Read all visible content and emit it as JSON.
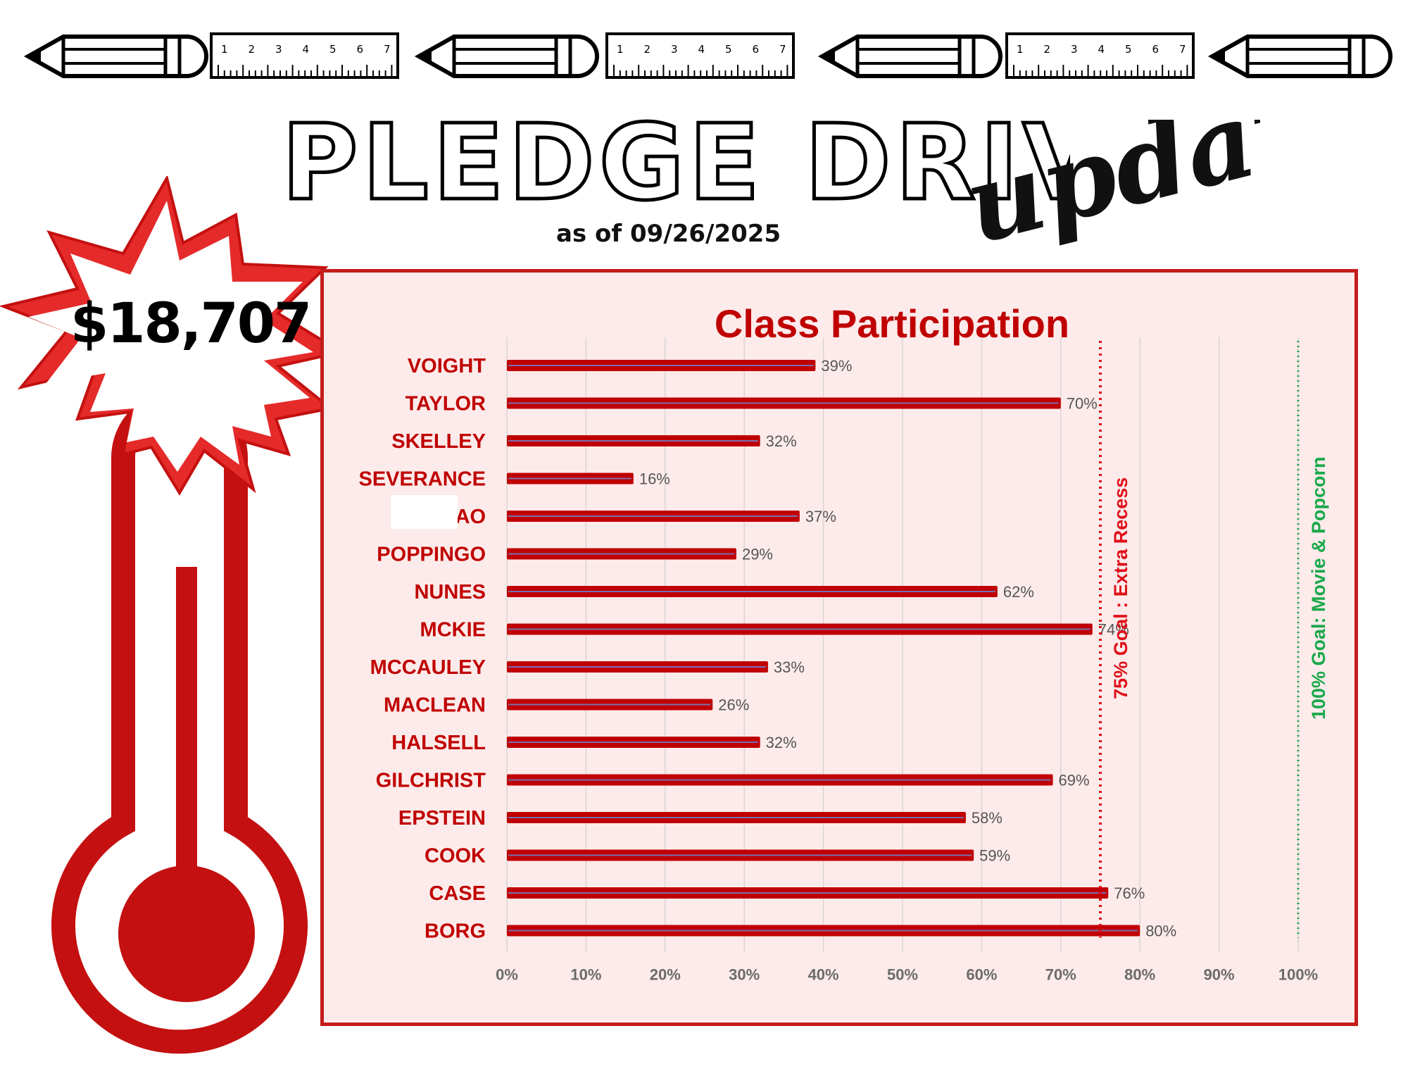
{
  "header": {
    "title": "PLEDGE DRIVE",
    "title_script": "update",
    "as_of": "as of 09/26/2025"
  },
  "thermometer": {
    "amount": "$18,707"
  },
  "decorations": {
    "items": [
      "pencil-icon",
      "ruler-icon",
      "pencil-icon",
      "ruler-icon",
      "pencil-icon",
      "ruler-icon",
      "pencil-icon"
    ],
    "ruler_numbers": [
      "1",
      "2",
      "3",
      "4",
      "5",
      "6",
      "7"
    ]
  },
  "colors": {
    "bar": "#c00000",
    "panel_bg": "#fcebea",
    "panel_border": "#c41c1c",
    "goal_75": "#e0101a",
    "goal_100": "#1aa84a"
  },
  "chart_data": {
    "type": "bar",
    "orientation": "horizontal",
    "title": "Class Participation",
    "categories": [
      "VOIGHT",
      "TAYLOR",
      "SKELLEY",
      "SEVERANCE",
      "AO",
      "POPPINGO",
      "NUNES",
      "MCKIE",
      "MCCAULEY",
      "MACLEAN",
      "HALSELL",
      "GILCHRIST",
      "EPSTEIN",
      "COOK",
      "CASE",
      "BORG"
    ],
    "values": [
      39,
      70,
      32,
      16,
      37,
      29,
      62,
      74,
      33,
      26,
      32,
      69,
      58,
      59,
      76,
      80
    ],
    "data_labels": [
      "39%",
      "70%",
      "32%",
      "16%",
      "37%",
      "29%",
      "62%",
      "74%",
      "33%",
      "26%",
      "32%",
      "69%",
      "58%",
      "59%",
      "76%",
      "80%"
    ],
    "x_ticks": [
      "0%",
      "10%",
      "20%",
      "30%",
      "40%",
      "50%",
      "60%",
      "70%",
      "80%",
      "90%",
      "100%"
    ],
    "xlim": [
      0,
      100
    ],
    "grid": true,
    "reference_lines": [
      {
        "value": 75,
        "label": "75%  Goal : Extra Recess",
        "color": "#e0101a"
      },
      {
        "value": 100,
        "label": "100% Goal: Movie & Popcorn",
        "color": "#1aa84a"
      }
    ]
  }
}
